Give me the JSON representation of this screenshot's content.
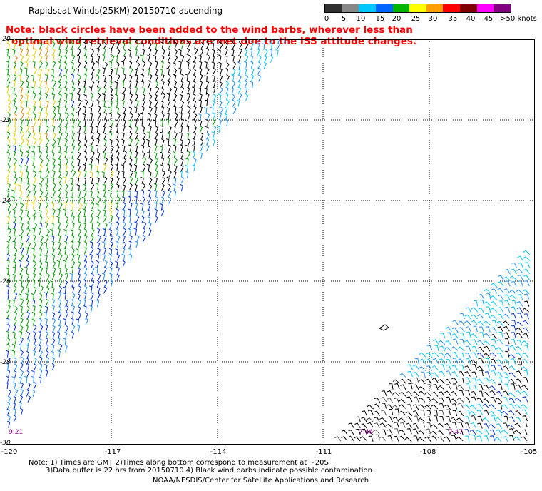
{
  "header": {
    "title": "Rapidscat Winds(25KM) 20150710 ascending",
    "note_line1": "Note: black circles have been added to the wind barbs, wherever less than",
    "note_line2": "optimal wind retrieval conditions are met due to the ISS attitude changes."
  },
  "legend": {
    "labels": [
      "0",
      "5",
      "10",
      "15",
      "20",
      "25",
      "30",
      "35",
      "40",
      "45",
      ">50 knots"
    ],
    "colors": [
      "#303030",
      "#888888",
      "#00c8ff",
      "#0064ff",
      "#00b400",
      "#ffff00",
      "#ffa000",
      "#ff0000",
      "#800000",
      "#ff00ff",
      "#800080"
    ]
  },
  "map": {
    "lat_labels": [
      "-20",
      "-22",
      "-24",
      "-26",
      "-28",
      "-30"
    ],
    "lon_labels": [
      "-120",
      "-117",
      "-114",
      "-111",
      "-108",
      "-105"
    ],
    "pass_times": [
      "9:21",
      "7:46",
      "7:47"
    ],
    "time_color": "#8b008b"
  },
  "footer": {
    "line1": "Note: 1) Times are GMT 2)Times along bottom correspond to measurement at ~20S",
    "line2": "3)Data buffer is 22 hrs from 20150710 4) Black wind barbs indicate possible contamination",
    "line3": "NOAA/NESDIS/Center for Satellite Applications and Research"
  }
}
